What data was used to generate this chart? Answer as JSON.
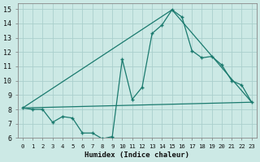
{
  "xlabel": "Humidex (Indice chaleur)",
  "background_color": "#cce9e5",
  "grid_color": "#aacfcc",
  "line_color": "#1a7a6e",
  "xlim": [
    -0.5,
    23.5
  ],
  "ylim": [
    6,
    15.4
  ],
  "x_ticks": [
    0,
    1,
    2,
    3,
    4,
    5,
    6,
    7,
    8,
    9,
    10,
    11,
    12,
    13,
    14,
    15,
    16,
    17,
    18,
    19,
    20,
    21,
    22,
    23
  ],
  "y_ticks": [
    6,
    7,
    8,
    9,
    10,
    11,
    12,
    13,
    14,
    15
  ],
  "curve_x": [
    0,
    1,
    2,
    3,
    4,
    5,
    6,
    7,
    8,
    9,
    10,
    11,
    12,
    13,
    14,
    15,
    16,
    17,
    18,
    19,
    20,
    21,
    22,
    23
  ],
  "curve_y": [
    8.1,
    8.0,
    8.0,
    7.1,
    7.5,
    7.4,
    6.35,
    6.35,
    5.95,
    6.1,
    11.5,
    8.7,
    9.55,
    13.3,
    13.9,
    14.95,
    14.45,
    12.1,
    11.6,
    11.7,
    11.1,
    10.0,
    9.7,
    8.5
  ],
  "line1_x": [
    0,
    23
  ],
  "line1_y": [
    8.1,
    8.5
  ],
  "line2_x": [
    0,
    15
  ],
  "line2_y": [
    8.1,
    14.95
  ],
  "line3_x": [
    15,
    23
  ],
  "line3_y": [
    14.95,
    8.5
  ]
}
